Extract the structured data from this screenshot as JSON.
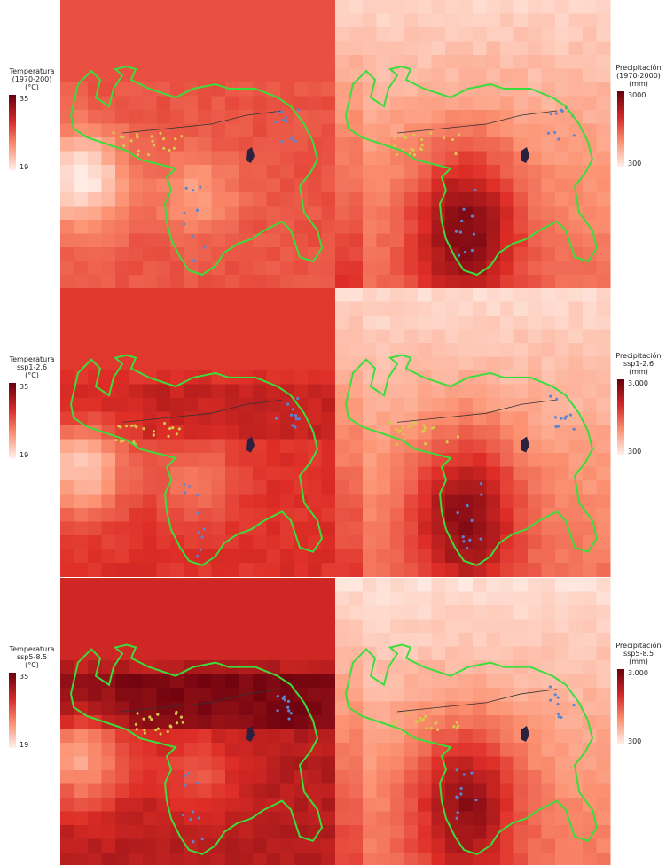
{
  "panels": [
    {
      "legend": {
        "lines": [
          "Temperatura",
          "(1970-200)",
          "(°C)"
        ],
        "max": "35",
        "min": "19"
      }
    },
    {
      "legend": {
        "lines": [
          "Precipitación",
          "(1970-2000)",
          "(mm)"
        ],
        "max": "3000",
        "min": "300"
      }
    },
    {
      "legend": {
        "lines": [
          "Temperatura",
          "ssp1-2.6",
          "(°C)"
        ],
        "max": "35",
        "min": "19"
      }
    },
    {
      "legend": {
        "lines": [
          "Precipitación",
          "ssp1-2.6",
          "(mm)"
        ],
        "max": "3.000",
        "min": "300"
      }
    },
    {
      "legend": {
        "lines": [
          "Temperatura",
          "ssp5-8.5",
          "(°C)"
        ],
        "max": "35",
        "min": "19"
      }
    },
    {
      "legend": {
        "lines": [
          "Precipitación",
          "ssp5-8.5",
          "(mm)"
        ],
        "max": "3.000",
        "min": "300"
      }
    }
  ]
}
